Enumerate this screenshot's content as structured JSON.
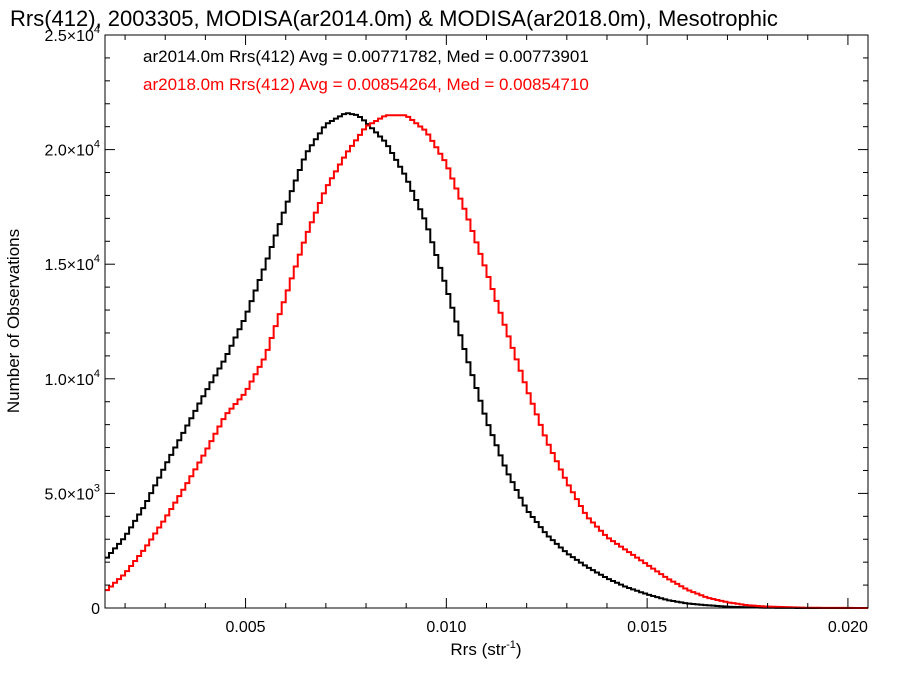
{
  "chart_data": {
    "type": "line",
    "title": "Rrs(412), 2003305, MODISA(ar2014.0m) & MODISA(ar2018.0m), Mesotrophic",
    "xlabel": "Rrs (str",
    "xlabel_sup": "-1",
    "xlabel_close": ")",
    "ylabel": "Number of Observations",
    "xlim": [
      0.0015,
      0.0205
    ],
    "ylim": [
      0,
      25000
    ],
    "x_ticks": [
      {
        "value": 0.005,
        "label": "0.005"
      },
      {
        "value": 0.01,
        "label": "0.010"
      },
      {
        "value": 0.015,
        "label": "0.015"
      },
      {
        "value": 0.02,
        "label": "0.020"
      }
    ],
    "y_ticks": [
      {
        "value": 0,
        "mant": "0",
        "exp": ""
      },
      {
        "value": 5000,
        "mant": "5.0×10",
        "exp": "3"
      },
      {
        "value": 10000,
        "mant": "1.0×10",
        "exp": "4"
      },
      {
        "value": 15000,
        "mant": "1.5×10",
        "exp": "4"
      },
      {
        "value": 20000,
        "mant": "2.0×10",
        "exp": "4"
      },
      {
        "value": 25000,
        "mant": "2.5×10",
        "exp": "4"
      }
    ],
    "grid": false,
    "legend_position": "top-left",
    "series": [
      {
        "name": "ar2014.0m Rrs(412) Avg = 0.00771782, Med = 0.00773901",
        "color": "#000000",
        "x": [
          0.0015,
          0.002,
          0.0025,
          0.003,
          0.0035,
          0.004,
          0.0045,
          0.005,
          0.0055,
          0.006,
          0.0065,
          0.007,
          0.0075,
          0.0078,
          0.008,
          0.0085,
          0.009,
          0.0095,
          0.01,
          0.0105,
          0.011,
          0.0115,
          0.012,
          0.0125,
          0.013,
          0.0135,
          0.014,
          0.0145,
          0.015,
          0.0155,
          0.016,
          0.0165,
          0.017,
          0.0175,
          0.018,
          0.019,
          0.0205
        ],
        "y": [
          2100,
          3100,
          4500,
          6200,
          7800,
          9400,
          10900,
          12700,
          15000,
          17500,
          19800,
          21100,
          21600,
          21500,
          21200,
          20300,
          18800,
          16800,
          14000,
          11000,
          8200,
          6000,
          4300,
          3200,
          2400,
          1800,
          1300,
          900,
          600,
          350,
          200,
          120,
          60,
          30,
          10,
          0,
          0
        ]
      },
      {
        "name": "ar2018.0m Rrs(412) Avg = 0.00854264, Med = 0.00854710",
        "color": "#ff0000",
        "x": [
          0.0015,
          0.002,
          0.0025,
          0.003,
          0.0035,
          0.004,
          0.0045,
          0.005,
          0.0055,
          0.006,
          0.0065,
          0.007,
          0.0075,
          0.008,
          0.0085,
          0.009,
          0.0095,
          0.01,
          0.0105,
          0.011,
          0.0115,
          0.012,
          0.0125,
          0.013,
          0.0135,
          0.014,
          0.0145,
          0.015,
          0.0155,
          0.016,
          0.0165,
          0.017,
          0.0175,
          0.018,
          0.019,
          0.0205
        ],
        "y": [
          700,
          1500,
          2600,
          3900,
          5300,
          6800,
          8400,
          9400,
          11000,
          13600,
          16200,
          18300,
          19800,
          21000,
          21500,
          21500,
          20800,
          19400,
          17200,
          14700,
          12100,
          9600,
          7300,
          5500,
          4000,
          3100,
          2500,
          1900,
          1300,
          800,
          450,
          250,
          120,
          60,
          10,
          0
        ]
      }
    ]
  }
}
